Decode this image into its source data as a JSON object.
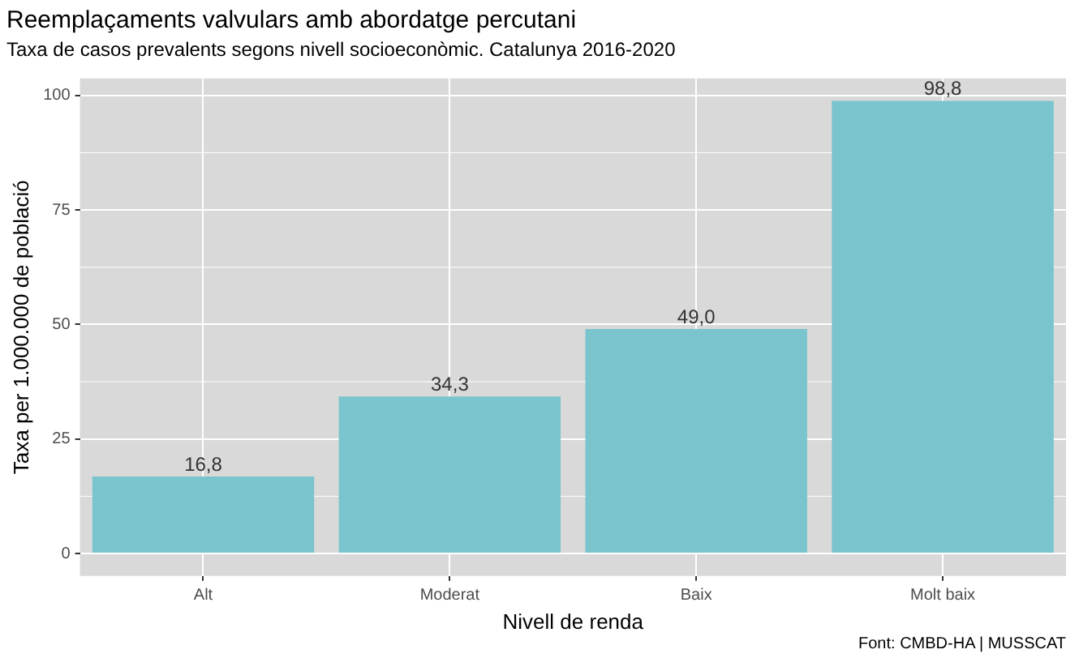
{
  "chart_data": {
    "type": "bar",
    "title": "Reemplaçaments valvulars amb abordatge percutani",
    "subtitle": "Taxa de casos prevalents segons nivell socioeconòmic. Catalunya 2016-2020",
    "xlabel": "Nivell de renda",
    "ylabel": "Taxa per 1.000.000 de població",
    "categories": [
      "Alt",
      "Moderat",
      "Baix",
      "Molt baix"
    ],
    "values": [
      16.8,
      34.3,
      49.0,
      98.8
    ],
    "value_labels": [
      "16,8",
      "34,3",
      "49,0",
      "98,8"
    ],
    "color": "#7ac5cd",
    "ylim": [
      -4.9,
      103.7
    ],
    "yticks": [
      0,
      25,
      50,
      75,
      100
    ],
    "grid": true,
    "annotations": [
      "Font: CMBD-HA | MUSSCAT"
    ]
  }
}
